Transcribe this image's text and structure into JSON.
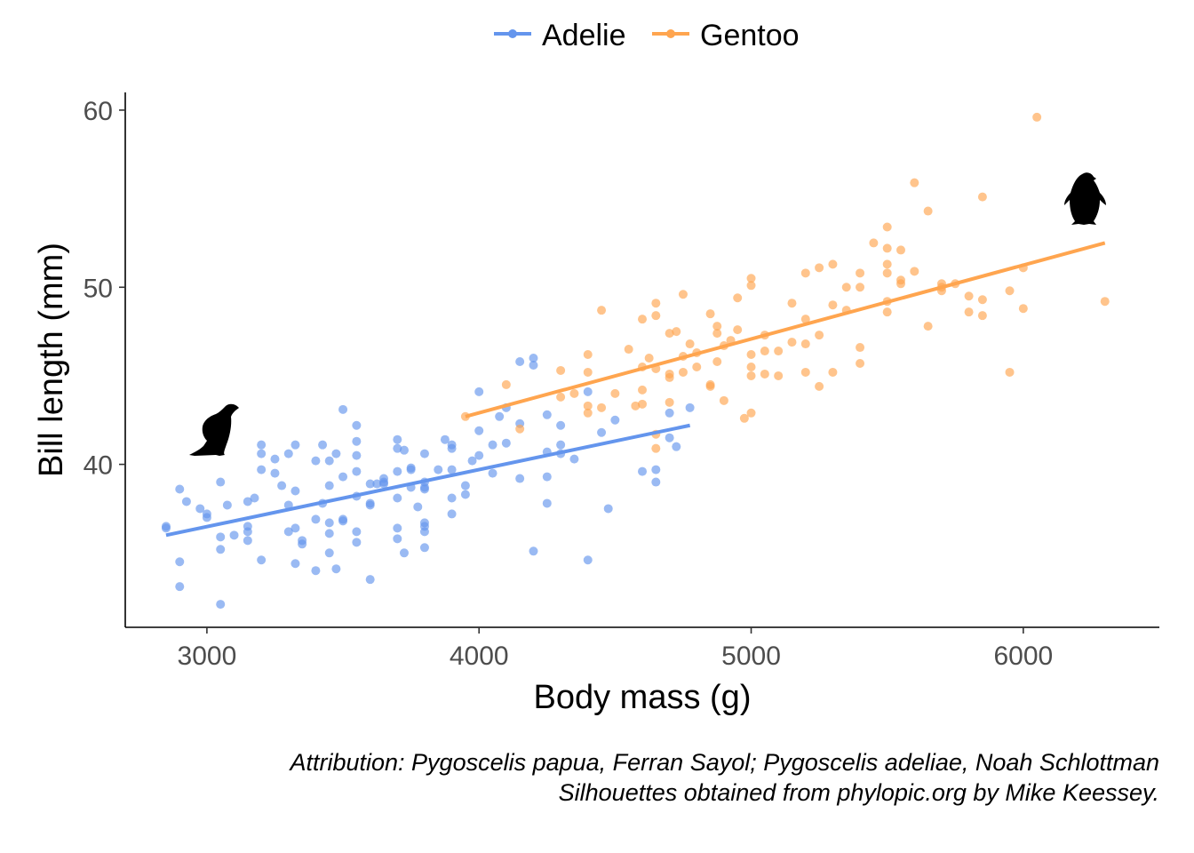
{
  "chart_data": {
    "type": "scatter",
    "title": "",
    "xlabel": "Body mass (g)",
    "ylabel": "Bill length (mm)",
    "xlim": [
      2700,
      6500
    ],
    "ylim": [
      30.8,
      61
    ],
    "xticks": [
      3000,
      4000,
      5000,
      6000
    ],
    "yticks": [
      40,
      50,
      60
    ],
    "grid": false,
    "legend_position": "top",
    "series": [
      {
        "name": "Adelie",
        "color": "#6495ED",
        "fit": {
          "x": [
            2850,
            4775
          ],
          "y": [
            36.0,
            42.2
          ]
        },
        "points": [
          [
            2850,
            36.5
          ],
          [
            2850,
            36.4
          ],
          [
            2900,
            38.6
          ],
          [
            2900,
            34.5
          ],
          [
            2900,
            33.1
          ],
          [
            2925,
            37.9
          ],
          [
            2975,
            37.5
          ],
          [
            3000,
            37.2
          ],
          [
            3000,
            37.0
          ],
          [
            3050,
            39.0
          ],
          [
            3050,
            35.9
          ],
          [
            3050,
            35.2
          ],
          [
            3050,
            32.1
          ],
          [
            3075,
            37.7
          ],
          [
            3100,
            36.0
          ],
          [
            3150,
            37.9
          ],
          [
            3150,
            36.2
          ],
          [
            3150,
            35.7
          ],
          [
            3150,
            36.5
          ],
          [
            3175,
            38.1
          ],
          [
            3200,
            41.1
          ],
          [
            3200,
            40.6
          ],
          [
            3200,
            39.7
          ],
          [
            3200,
            34.6
          ],
          [
            3250,
            39.5
          ],
          [
            3250,
            40.3
          ],
          [
            3275,
            38.8
          ],
          [
            3300,
            40.6
          ],
          [
            3300,
            37.7
          ],
          [
            3300,
            36.2
          ],
          [
            3325,
            41.1
          ],
          [
            3325,
            36.4
          ],
          [
            3325,
            38.5
          ],
          [
            3325,
            34.4
          ],
          [
            3350,
            35.7
          ],
          [
            3350,
            35.5
          ],
          [
            3400,
            40.2
          ],
          [
            3400,
            36.9
          ],
          [
            3400,
            34.0
          ],
          [
            3425,
            41.1
          ],
          [
            3425,
            37.8
          ],
          [
            3450,
            36.7
          ],
          [
            3450,
            38.8
          ],
          [
            3450,
            40.2
          ],
          [
            3450,
            36.1
          ],
          [
            3450,
            35.0
          ],
          [
            3475,
            40.6
          ],
          [
            3475,
            34.1
          ],
          [
            3500,
            43.1
          ],
          [
            3500,
            39.3
          ],
          [
            3500,
            36.8
          ],
          [
            3500,
            36.9
          ],
          [
            3550,
            42.2
          ],
          [
            3550,
            41.3
          ],
          [
            3550,
            40.5
          ],
          [
            3550,
            39.6
          ],
          [
            3550,
            38.2
          ],
          [
            3550,
            36.2
          ],
          [
            3550,
            35.6
          ],
          [
            3600,
            38.9
          ],
          [
            3600,
            37.8
          ],
          [
            3600,
            37.7
          ],
          [
            3600,
            33.5
          ],
          [
            3625,
            38.9
          ],
          [
            3650,
            39.2
          ],
          [
            3650,
            39.0
          ],
          [
            3650,
            38.9
          ],
          [
            3700,
            41.4
          ],
          [
            3700,
            40.9
          ],
          [
            3700,
            39.6
          ],
          [
            3700,
            38.1
          ],
          [
            3700,
            36.4
          ],
          [
            3700,
            35.8
          ],
          [
            3725,
            40.8
          ],
          [
            3725,
            35.0
          ],
          [
            3750,
            39.8
          ],
          [
            3750,
            39.7
          ],
          [
            3750,
            38.7
          ],
          [
            3775,
            37.6
          ],
          [
            3800,
            40.6
          ],
          [
            3800,
            39.0
          ],
          [
            3800,
            38.7
          ],
          [
            3800,
            38.6
          ],
          [
            3800,
            36.7
          ],
          [
            3800,
            36.2
          ],
          [
            3800,
            35.3
          ],
          [
            3800,
            36.5
          ],
          [
            3850,
            39.7
          ],
          [
            3875,
            41.4
          ],
          [
            3900,
            41.1
          ],
          [
            3900,
            40.9
          ],
          [
            3900,
            39.7
          ],
          [
            3900,
            38.1
          ],
          [
            3900,
            37.2
          ],
          [
            3950,
            38.8
          ],
          [
            3950,
            38.3
          ],
          [
            3975,
            40.2
          ],
          [
            4000,
            44.1
          ],
          [
            4000,
            41.9
          ],
          [
            4000,
            40.5
          ],
          [
            4050,
            41.1
          ],
          [
            4050,
            39.5
          ],
          [
            4075,
            42.7
          ],
          [
            4100,
            41.2
          ],
          [
            4100,
            43.2
          ],
          [
            4150,
            45.8
          ],
          [
            4150,
            42.3
          ],
          [
            4150,
            39.2
          ],
          [
            4200,
            46.0
          ],
          [
            4200,
            45.6
          ],
          [
            4200,
            35.1
          ],
          [
            4250,
            42.8
          ],
          [
            4250,
            40.7
          ],
          [
            4250,
            39.3
          ],
          [
            4250,
            37.8
          ],
          [
            4300,
            42.2
          ],
          [
            4300,
            40.6
          ],
          [
            4300,
            41.1
          ],
          [
            4350,
            40.3
          ],
          [
            4400,
            44.1
          ],
          [
            4400,
            34.6
          ],
          [
            4450,
            41.8
          ],
          [
            4475,
            37.5
          ],
          [
            4500,
            42.5
          ],
          [
            4600,
            39.6
          ],
          [
            4650,
            39.7
          ],
          [
            4650,
            39.0
          ],
          [
            4700,
            42.9
          ],
          [
            4700,
            41.5
          ],
          [
            4725,
            41.0
          ],
          [
            4775,
            43.2
          ]
        ]
      },
      {
        "name": "Gentoo",
        "color": "#FFA54F",
        "fit": {
          "x": [
            3950,
            6300
          ],
          "y": [
            42.7,
            52.5
          ]
        },
        "points": [
          [
            3950,
            42.7
          ],
          [
            4100,
            44.5
          ],
          [
            4150,
            42.0
          ],
          [
            4300,
            45.3
          ],
          [
            4300,
            43.8
          ],
          [
            4350,
            44.0
          ],
          [
            4400,
            46.2
          ],
          [
            4400,
            45.2
          ],
          [
            4400,
            43.3
          ],
          [
            4400,
            42.9
          ],
          [
            4450,
            48.7
          ],
          [
            4450,
            43.2
          ],
          [
            4500,
            44.0
          ],
          [
            4550,
            46.5
          ],
          [
            4575,
            43.3
          ],
          [
            4600,
            48.2
          ],
          [
            4600,
            45.5
          ],
          [
            4600,
            44.2
          ],
          [
            4600,
            43.4
          ],
          [
            4625,
            46.0
          ],
          [
            4650,
            49.1
          ],
          [
            4650,
            48.4
          ],
          [
            4650,
            45.4
          ],
          [
            4650,
            41.7
          ],
          [
            4650,
            40.9
          ],
          [
            4700,
            47.4
          ],
          [
            4700,
            45.1
          ],
          [
            4700,
            44.9
          ],
          [
            4700,
            43.5
          ],
          [
            4725,
            47.5
          ],
          [
            4750,
            49.6
          ],
          [
            4750,
            46.1
          ],
          [
            4750,
            45.2
          ],
          [
            4775,
            46.8
          ],
          [
            4800,
            46.3
          ],
          [
            4800,
            45.5
          ],
          [
            4850,
            48.5
          ],
          [
            4850,
            44.5
          ],
          [
            4850,
            44.4
          ],
          [
            4875,
            47.4
          ],
          [
            4875,
            47.8
          ],
          [
            4875,
            45.8
          ],
          [
            4900,
            46.7
          ],
          [
            4900,
            43.6
          ],
          [
            4925,
            47.0
          ],
          [
            4950,
            49.4
          ],
          [
            4950,
            47.6
          ],
          [
            4975,
            42.6
          ],
          [
            5000,
            50.5
          ],
          [
            5000,
            50.1
          ],
          [
            5000,
            46.2
          ],
          [
            5000,
            45.5
          ],
          [
            5000,
            45.0
          ],
          [
            5000,
            42.9
          ],
          [
            5050,
            47.3
          ],
          [
            5050,
            46.4
          ],
          [
            5050,
            45.1
          ],
          [
            5100,
            46.4
          ],
          [
            5100,
            45.0
          ],
          [
            5150,
            49.1
          ],
          [
            5150,
            46.9
          ],
          [
            5200,
            50.8
          ],
          [
            5200,
            48.2
          ],
          [
            5200,
            46.8
          ],
          [
            5200,
            45.2
          ],
          [
            5250,
            51.1
          ],
          [
            5250,
            47.3
          ],
          [
            5250,
            44.4
          ],
          [
            5300,
            51.3
          ],
          [
            5300,
            49.0
          ],
          [
            5300,
            45.2
          ],
          [
            5350,
            50.0
          ],
          [
            5350,
            48.7
          ],
          [
            5400,
            50.8
          ],
          [
            5400,
            50.0
          ],
          [
            5400,
            46.6
          ],
          [
            5400,
            45.7
          ],
          [
            5450,
            52.5
          ],
          [
            5500,
            53.4
          ],
          [
            5500,
            52.2
          ],
          [
            5500,
            51.3
          ],
          [
            5500,
            50.8
          ],
          [
            5500,
            49.2
          ],
          [
            5500,
            48.6
          ],
          [
            5550,
            52.1
          ],
          [
            5550,
            50.4
          ],
          [
            5550,
            50.2
          ],
          [
            5600,
            55.9
          ],
          [
            5600,
            50.9
          ],
          [
            5650,
            54.3
          ],
          [
            5650,
            47.8
          ],
          [
            5700,
            50.2
          ],
          [
            5700,
            50.0
          ],
          [
            5700,
            49.8
          ],
          [
            5750,
            50.2
          ],
          [
            5800,
            49.5
          ],
          [
            5800,
            48.6
          ],
          [
            5850,
            55.1
          ],
          [
            5850,
            49.3
          ],
          [
            5850,
            48.4
          ],
          [
            5950,
            49.8
          ],
          [
            5950,
            45.2
          ],
          [
            6000,
            51.1
          ],
          [
            6000,
            48.8
          ],
          [
            6050,
            59.6
          ],
          [
            6300,
            49.2
          ]
        ]
      }
    ],
    "caption": [
      "Attribution: Pygoscelis papua, Ferran Sayol; Pygoscelis adeliae, Noah Schlottman",
      "Silhouettes obtained from phylopic.org by Mike Keessey."
    ]
  }
}
